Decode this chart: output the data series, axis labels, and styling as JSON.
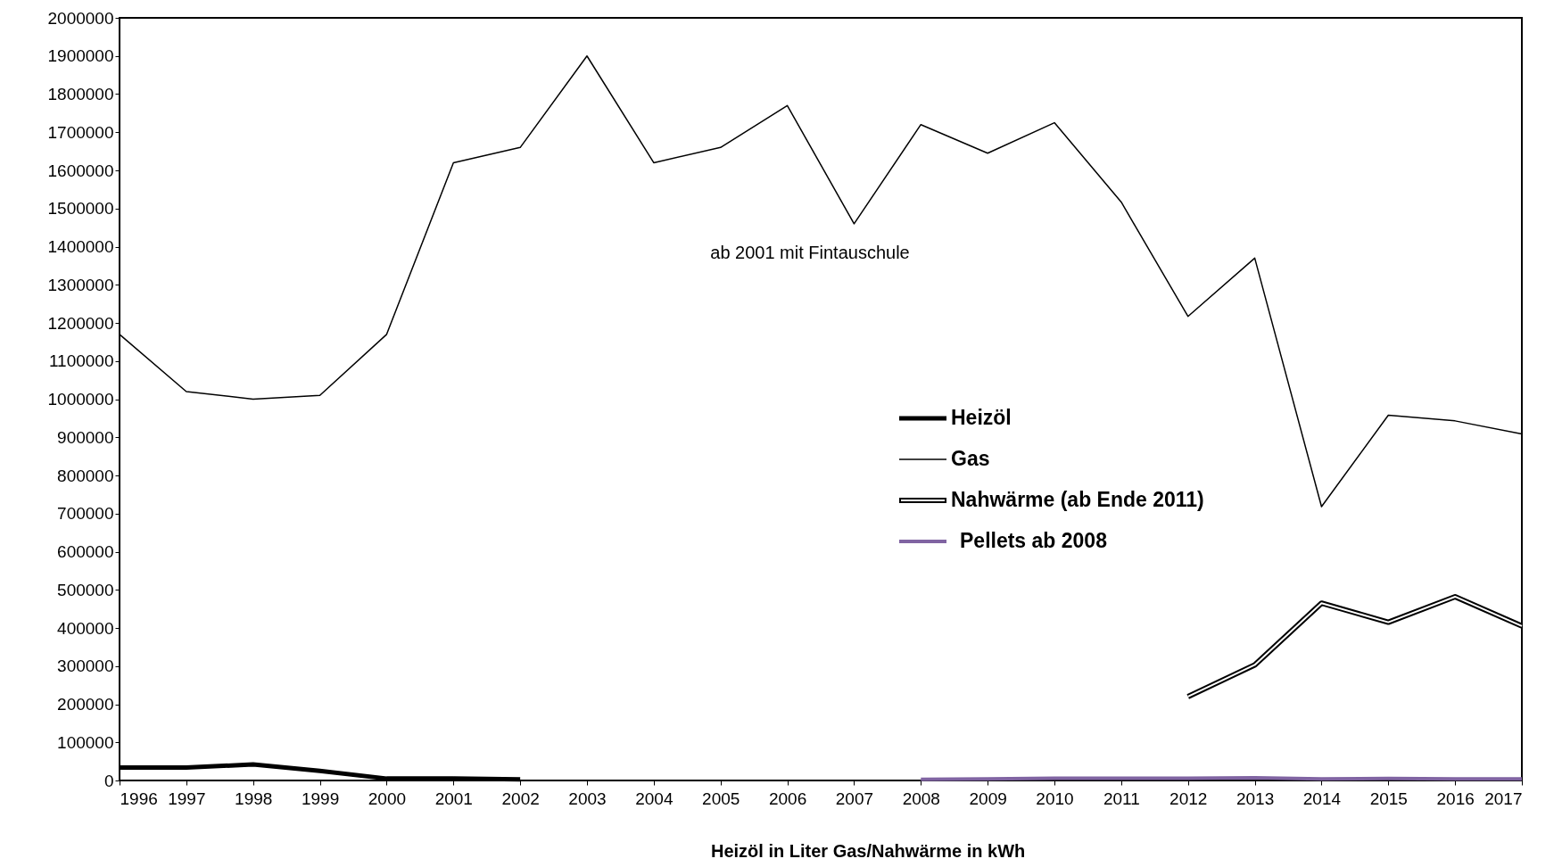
{
  "chart_data": {
    "type": "line",
    "x": [
      1996,
      1997,
      1998,
      1999,
      2000,
      2001,
      2002,
      2003,
      2004,
      2005,
      2006,
      2007,
      2008,
      2009,
      2010,
      2011,
      2012,
      2013,
      2014,
      2015,
      2016,
      2017
    ],
    "series": [
      {
        "name": "Heizöl",
        "color": "#000000",
        "x": [
          1996,
          1997,
          1998,
          1999,
          2000,
          2001,
          2002
        ],
        "values": [
          34000,
          34000,
          42000,
          25000,
          5000,
          5000,
          3000
        ]
      },
      {
        "name": "Gas",
        "color": "#000000",
        "values": [
          1170000,
          1020000,
          1000000,
          1010000,
          1170000,
          1620000,
          1660000,
          1900000,
          1620000,
          1660000,
          1770000,
          1460000,
          1720000,
          1645000,
          1725000,
          1517000,
          1217000,
          1370000,
          718000,
          958000,
          943000,
          909000
        ]
      },
      {
        "name": "Nahwärme  (ab Ende 2011)",
        "color": "#000000",
        "x": [
          2012,
          2013,
          2014,
          2015,
          2016,
          2017
        ],
        "values": [
          220000,
          303000,
          465000,
          415000,
          482000,
          405000
        ]
      },
      {
        "name": "Pellets ab 2008",
        "color": "#8064a2",
        "x": [
          2008,
          2009,
          2010,
          2011,
          2012,
          2013,
          2014,
          2015,
          2016,
          2017
        ],
        "values": [
          3000,
          4000,
          6000,
          6000,
          6000,
          7000,
          4000,
          5000,
          4000,
          4000
        ]
      }
    ],
    "xlim": [
      1996,
      2017
    ],
    "xticks": [
      1996,
      1997,
      1998,
      1999,
      2000,
      2001,
      2002,
      2003,
      2004,
      2005,
      2006,
      2007,
      2008,
      2009,
      2010,
      2011,
      2012,
      2013,
      2014,
      2015,
      2016,
      2017
    ],
    "ylim": [
      0,
      2000000
    ],
    "yticks": [
      0,
      100000,
      200000,
      300000,
      400000,
      500000,
      600000,
      700000,
      800000,
      900000,
      1000000,
      1100000,
      1200000,
      1300000,
      1400000,
      1500000,
      1600000,
      1700000,
      1800000,
      1900000,
      2000000
    ],
    "annotations": [
      "ab 2001 mit Fintauschule",
      "Heizöl in Liter    Gas/Nahwärme in kWh"
    ],
    "legend": "right",
    "grid": false,
    "marker": "none",
    "line_style": "solid"
  }
}
